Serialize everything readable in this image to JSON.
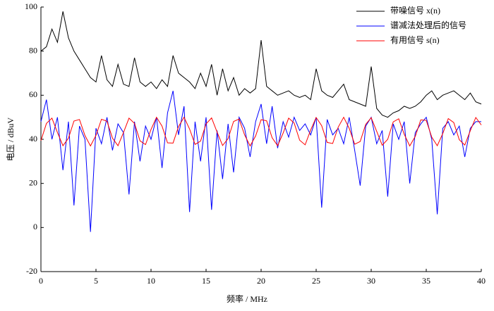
{
  "chart_data": {
    "type": "line",
    "xlabel": "频率 / MHz",
    "ylabel": "电压 / dBuV",
    "x": [
      0,
      0.5,
      1,
      1.5,
      2,
      2.5,
      3,
      3.5,
      4,
      4.5,
      5,
      5.5,
      6,
      6.5,
      7,
      7.5,
      8,
      8.5,
      9,
      9.5,
      10,
      10.5,
      11,
      11.5,
      12,
      12.5,
      13,
      13.5,
      14,
      14.5,
      15,
      15.5,
      16,
      16.5,
      17,
      17.5,
      18,
      18.5,
      19,
      19.5,
      20,
      20.5,
      21,
      21.5,
      22,
      22.5,
      23,
      23.5,
      24,
      24.5,
      25,
      25.5,
      26,
      26.5,
      27,
      27.5,
      28,
      28.5,
      29,
      29.5,
      30,
      30.5,
      31,
      31.5,
      32,
      32.5,
      33,
      33.5,
      34,
      34.5,
      35,
      35.5,
      36,
      36.5,
      37,
      37.5,
      38,
      38.5,
      39,
      39.5,
      40
    ],
    "series": [
      {
        "name": "带噪信号 x(n)",
        "color": "#000000",
        "values": [
          80,
          82,
          90,
          84,
          98,
          86,
          80,
          76,
          72,
          68,
          66,
          78,
          67,
          64,
          74,
          65,
          64,
          77,
          66,
          64,
          66,
          63,
          67,
          64,
          78,
          70,
          68,
          66,
          63,
          70,
          64,
          74,
          60,
          72,
          62,
          68,
          60,
          63,
          61,
          63,
          85,
          64,
          62,
          60,
          61,
          62,
          60,
          59,
          60,
          58,
          72,
          62,
          60,
          59,
          62,
          65,
          58,
          57,
          56,
          55,
          73,
          54,
          51,
          50,
          52,
          53,
          55,
          54,
          55,
          57,
          60,
          62,
          58,
          60,
          61,
          62,
          60,
          58,
          61,
          57,
          56
        ]
      },
      {
        "name": "谱减法处理后的信号",
        "color": "#0000ff",
        "values": [
          48,
          58,
          40,
          50,
          26,
          48,
          10,
          46,
          40,
          -2,
          45,
          38,
          50,
          35,
          47,
          43,
          15,
          48,
          30,
          46,
          40,
          50,
          27,
          52,
          62,
          42,
          55,
          7,
          48,
          30,
          50,
          8,
          44,
          22,
          47,
          25,
          50,
          45,
          32,
          48,
          56,
          38,
          55,
          36,
          48,
          41,
          50,
          44,
          47,
          42,
          50,
          9,
          49,
          42,
          45,
          38,
          50,
          35,
          19,
          46,
          50,
          38,
          44,
          14,
          47,
          40,
          48,
          20,
          43,
          47,
          50,
          40,
          6,
          45,
          48,
          42,
          46,
          32,
          45,
          48,
          48
        ]
      },
      {
        "name": "有用信号 s(n)",
        "color": "#ff0000",
        "values": [
          39.4,
          47.2,
          49.6,
          43.1,
          37.1,
          40.5,
          48.3,
          49.0,
          41.7,
          37.0,
          41.8,
          49.1,
          48.2,
          40.5,
          37.1,
          43.1,
          49.6,
          47.2,
          39.3,
          37.6,
          44.5,
          50.0,
          46.0,
          38.4,
          38.3,
          45.8,
          50.0,
          44.7,
          37.7,
          39.2,
          47.0,
          49.7,
          43.3,
          37.2,
          40.3,
          48.1,
          49.2,
          42.0,
          37.0,
          41.5,
          48.9,
          48.4,
          40.7,
          37.1,
          42.8,
          49.6,
          47.4,
          39.6,
          37.5,
          44.2,
          49.9,
          46.2,
          38.6,
          38.1,
          45.5,
          50.0,
          45.0,
          37.8,
          39.0,
          46.8,
          49.8,
          43.6,
          37.3,
          40.0,
          47.9,
          49.3,
          42.3,
          37.0,
          41.3,
          48.8,
          48.6,
          41.0,
          37.1,
          42.6,
          49.4,
          47.6,
          39.8,
          37.4,
          43.9,
          49.9,
          46.5
        ]
      }
    ],
    "xlim": [
      0,
      40
    ],
    "xticks": [
      0,
      5,
      10,
      15,
      20,
      25,
      30,
      35,
      40
    ],
    "ylim": [
      -20,
      100
    ],
    "yticks": [
      -20,
      0,
      20,
      40,
      60,
      80,
      100
    ],
    "legend": "upper right"
  }
}
